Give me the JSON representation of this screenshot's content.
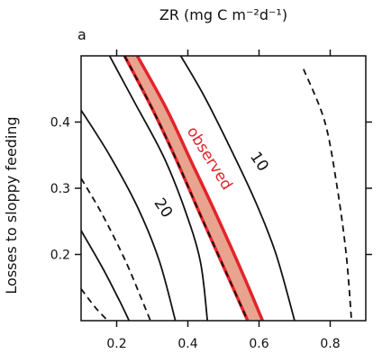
{
  "chart_data": {
    "type": "contour",
    "panel_label": "a",
    "title": "",
    "xlabel": "ZR (mg C m⁻²d⁻¹)",
    "ylabel": "Losses to sloppy feeding",
    "xlim": [
      0.1,
      0.9
    ],
    "ylim": [
      0.1,
      0.5
    ],
    "xticks": [
      0.2,
      0.4,
      0.6,
      0.8
    ],
    "yticks": [
      0.2,
      0.3,
      0.4
    ],
    "grid": false,
    "colors": {
      "contour": "#111111",
      "observed_line": "#e2242b",
      "observed_fill": "#e8a48e"
    },
    "contour_lines": [
      {
        "style": "dashed",
        "points": [
          [
            0.1,
            0.148
          ],
          [
            0.14,
            0.12
          ],
          [
            0.175,
            0.1
          ]
        ]
      },
      {
        "style": "solid",
        "points": [
          [
            0.1,
            0.236
          ],
          [
            0.16,
            0.18
          ],
          [
            0.208,
            0.13
          ],
          [
            0.235,
            0.1
          ]
        ]
      },
      {
        "style": "dashed",
        "points": [
          [
            0.1,
            0.315
          ],
          [
            0.16,
            0.26
          ],
          [
            0.225,
            0.19
          ],
          [
            0.272,
            0.13
          ],
          [
            0.295,
            0.1
          ]
        ]
      },
      {
        "style": "solid",
        "points": [
          [
            0.1,
            0.418
          ],
          [
            0.18,
            0.35
          ],
          [
            0.26,
            0.27
          ],
          [
            0.32,
            0.19
          ],
          [
            0.365,
            0.1
          ]
        ]
      },
      {
        "style": "solid",
        "points": [
          [
            0.18,
            0.5
          ],
          [
            0.25,
            0.43
          ],
          [
            0.33,
            0.35
          ],
          [
            0.39,
            0.27
          ],
          [
            0.435,
            0.19
          ],
          [
            0.455,
            0.1
          ]
        ]
      },
      {
        "style": "dashed",
        "points": [
          [
            0.222,
            0.5
          ],
          [
            0.3,
            0.42
          ],
          [
            0.37,
            0.34
          ],
          [
            0.435,
            0.26
          ],
          [
            0.51,
            0.17
          ],
          [
            0.568,
            0.1
          ]
        ]
      },
      {
        "style": "solid",
        "points": [
          [
            0.38,
            0.5
          ],
          [
            0.445,
            0.44
          ],
          [
            0.52,
            0.36
          ],
          [
            0.59,
            0.28
          ],
          [
            0.648,
            0.2
          ],
          [
            0.7,
            0.1
          ]
        ]
      },
      {
        "style": "dashed",
        "points": [
          [
            0.725,
            0.48
          ],
          [
            0.785,
            0.4
          ],
          [
            0.82,
            0.3
          ],
          [
            0.845,
            0.2
          ],
          [
            0.86,
            0.1
          ]
        ]
      }
    ],
    "observed_band": {
      "label": "observed",
      "lower": [
        [
          0.222,
          0.5
        ],
        [
          0.3,
          0.42
        ],
        [
          0.37,
          0.34
        ],
        [
          0.435,
          0.26
        ],
        [
          0.51,
          0.17
        ],
        [
          0.568,
          0.1
        ]
      ],
      "upper": [
        [
          0.258,
          0.5
        ],
        [
          0.34,
          0.42
        ],
        [
          0.41,
          0.34
        ],
        [
          0.48,
          0.26
        ],
        [
          0.555,
          0.17
        ],
        [
          0.61,
          0.1
        ]
      ]
    },
    "contour_labels": [
      {
        "text": "20",
        "x": 0.33,
        "y": 0.27
      },
      {
        "text": "10",
        "x": 0.6,
        "y": 0.34
      }
    ]
  }
}
